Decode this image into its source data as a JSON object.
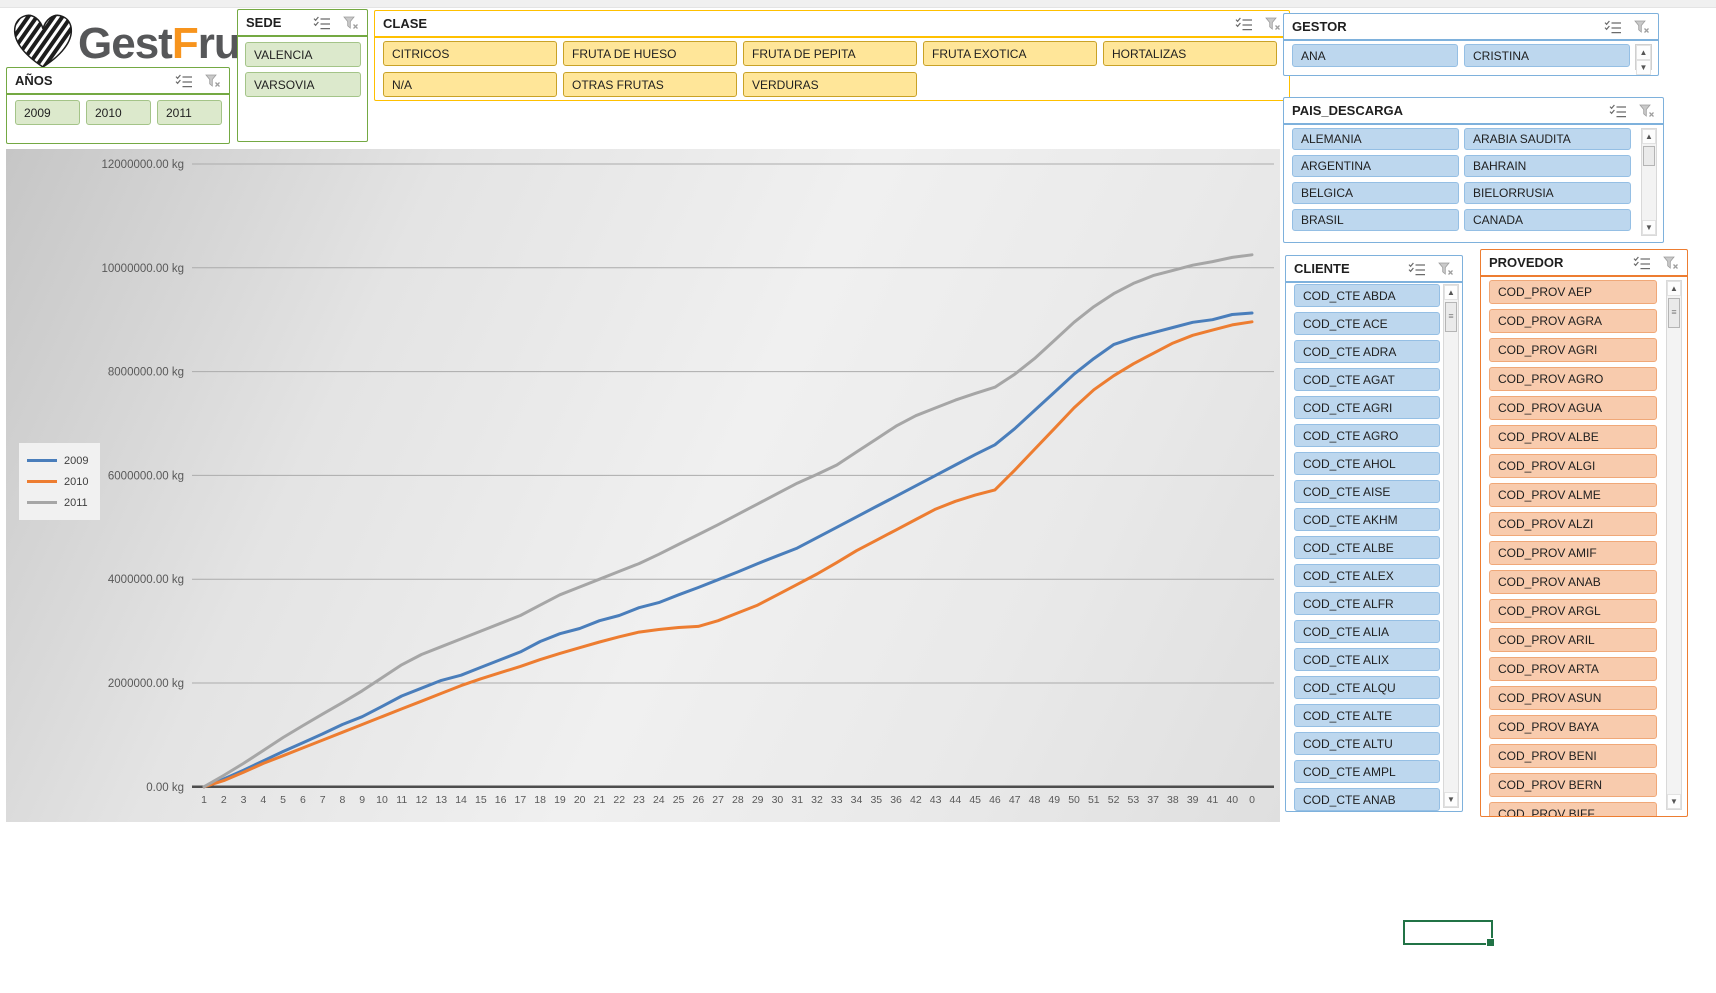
{
  "logo": {
    "gest": "Gest",
    "f": "F",
    "rut": "rut"
  },
  "slicers": {
    "anos": {
      "title": "AÑOS",
      "items": [
        "2009",
        "2010",
        "2011"
      ]
    },
    "sede": {
      "title": "SEDE",
      "items": [
        "VALENCIA",
        "VARSOVIA"
      ]
    },
    "clase": {
      "title": "CLASE",
      "items": [
        "CITRICOS",
        "FRUTA DE HUESO",
        "FRUTA DE PEPITA",
        "FRUTA EXOTICA",
        "HORTALIZAS",
        "N/A",
        "OTRAS FRUTAS",
        "VERDURAS"
      ]
    },
    "gestor": {
      "title": "GESTOR",
      "items": [
        "ANA",
        "CRISTINA"
      ]
    },
    "pais_descarga": {
      "title": "PAIS_DESCARGA",
      "items": [
        "ALEMANIA",
        "ARABIA SAUDITA",
        "ARGENTINA",
        "BAHRAIN",
        "BELGICA",
        "BIELORRUSIA",
        "BRASIL",
        "CANADA"
      ]
    },
    "cliente": {
      "title": "CLIENTE",
      "items": [
        "COD_CTE ABDA",
        "COD_CTE ACE",
        "COD_CTE ADRA",
        "COD_CTE AGAT",
        "COD_CTE AGRI",
        "COD_CTE AGRO",
        "COD_CTE AHOL",
        "COD_CTE AISE",
        "COD_CTE AKHM",
        "COD_CTE ALBE",
        "COD_CTE ALEX",
        "COD_CTE ALFR",
        "COD_CTE ALIA",
        "COD_CTE ALIX",
        "COD_CTE ALQU",
        "COD_CTE ALTE",
        "COD_CTE ALTU",
        "COD_CTE AMPL",
        "COD_CTE ANAB"
      ]
    },
    "provedor": {
      "title": "PROVEDOR",
      "items": [
        "COD_PROV AEP",
        "COD_PROV AGRA",
        "COD_PROV AGRI",
        "COD_PROV AGRO",
        "COD_PROV AGUA",
        "COD_PROV ALBE",
        "COD_PROV ALGI",
        "COD_PROV ALME",
        "COD_PROV ALZI",
        "COD_PROV AMIF",
        "COD_PROV ANAB",
        "COD_PROV ARGL",
        "COD_PROV ARIL",
        "COD_PROV ARTA",
        "COD_PROV ASUN",
        "COD_PROV BAYA",
        "COD_PROV BENI",
        "COD_PROV BERN",
        "COD_PROV BIFF"
      ]
    }
  },
  "colors": {
    "green_theme": "#74A943",
    "yellow_theme": "#FFC000",
    "blue_theme": "#7EB1DC",
    "orange_theme": "#ED7D31",
    "active_cell_green": "#217346",
    "logo_orange": "#F7941D"
  },
  "chart_data": {
    "type": "line",
    "title": "",
    "xlabel": "",
    "ylabel": "kg",
    "ylim": [
      0,
      12000000
    ],
    "grid": true,
    "legend_position": "middle-left",
    "y_ticks": [
      {
        "value": 12000000,
        "label": "12000000.00 kg"
      },
      {
        "value": 10000000,
        "label": "10000000.00 kg"
      },
      {
        "value": 8000000,
        "label": "8000000.00 kg"
      },
      {
        "value": 6000000,
        "label": "6000000.00 kg"
      },
      {
        "value": 4000000,
        "label": "4000000.00 kg"
      },
      {
        "value": 2000000,
        "label": "2000000.00 kg"
      },
      {
        "value": 0,
        "label": "0.00 kg"
      }
    ],
    "categories": [
      "1",
      "2",
      "3",
      "4",
      "5",
      "6",
      "7",
      "8",
      "9",
      "10",
      "11",
      "12",
      "13",
      "14",
      "15",
      "16",
      "17",
      "18",
      "19",
      "20",
      "21",
      "22",
      "23",
      "24",
      "25",
      "26",
      "27",
      "28",
      "29",
      "30",
      "31",
      "32",
      "33",
      "34",
      "35",
      "36",
      "42",
      "43",
      "44",
      "45",
      "46",
      "47",
      "48",
      "49",
      "50",
      "51",
      "52",
      "53",
      "37",
      "38",
      "39",
      "41",
      "40",
      "0"
    ],
    "series": [
      {
        "name": "2009",
        "color": "#4A7EBB",
        "values": [
          0,
          150000,
          320000,
          500000,
          680000,
          850000,
          1020000,
          1200000,
          1350000,
          1550000,
          1750000,
          1900000,
          2050000,
          2150000,
          2300000,
          2450000,
          2600000,
          2800000,
          2950000,
          3050000,
          3200000,
          3300000,
          3450000,
          3550000,
          3700000,
          3840000,
          3990000,
          4140000,
          4300000,
          4450000,
          4600000,
          4800000,
          5000000,
          5200000,
          5400000,
          5600000,
          5800000,
          6000000,
          6200000,
          6400000,
          6590000,
          6900000,
          7250000,
          7600000,
          7950000,
          8250000,
          8520000,
          8650000,
          8750000,
          8850000,
          8950000,
          9000000,
          9100000,
          9130000
        ]
      },
      {
        "name": "2010",
        "color": "#ED7D31",
        "values": [
          0,
          120000,
          280000,
          450000,
          600000,
          750000,
          900000,
          1050000,
          1200000,
          1350000,
          1500000,
          1650000,
          1800000,
          1950000,
          2080000,
          2200000,
          2320000,
          2450000,
          2570000,
          2680000,
          2790000,
          2890000,
          2980000,
          3030000,
          3070000,
          3090000,
          3200000,
          3350000,
          3500000,
          3700000,
          3900000,
          4100000,
          4320000,
          4550000,
          4750000,
          4950000,
          5150000,
          5350000,
          5500000,
          5620000,
          5720000,
          6100000,
          6500000,
          6900000,
          7300000,
          7650000,
          7920000,
          8150000,
          8350000,
          8550000,
          8700000,
          8800000,
          8900000,
          8960000
        ]
      },
      {
        "name": "2011",
        "color": "#A6A6A6",
        "values": [
          0,
          220000,
          450000,
          700000,
          950000,
          1180000,
          1400000,
          1620000,
          1850000,
          2100000,
          2350000,
          2550000,
          2700000,
          2850000,
          3000000,
          3150000,
          3300000,
          3500000,
          3700000,
          3850000,
          4000000,
          4150000,
          4300000,
          4480000,
          4670000,
          4860000,
          5050000,
          5250000,
          5450000,
          5650000,
          5850000,
          6020000,
          6200000,
          6450000,
          6700000,
          6950000,
          7150000,
          7300000,
          7450000,
          7580000,
          7700000,
          7950000,
          8250000,
          8600000,
          8950000,
          9250000,
          9500000,
          9700000,
          9850000,
          9950000,
          10050000,
          10120000,
          10200000,
          10250000
        ]
      }
    ]
  }
}
